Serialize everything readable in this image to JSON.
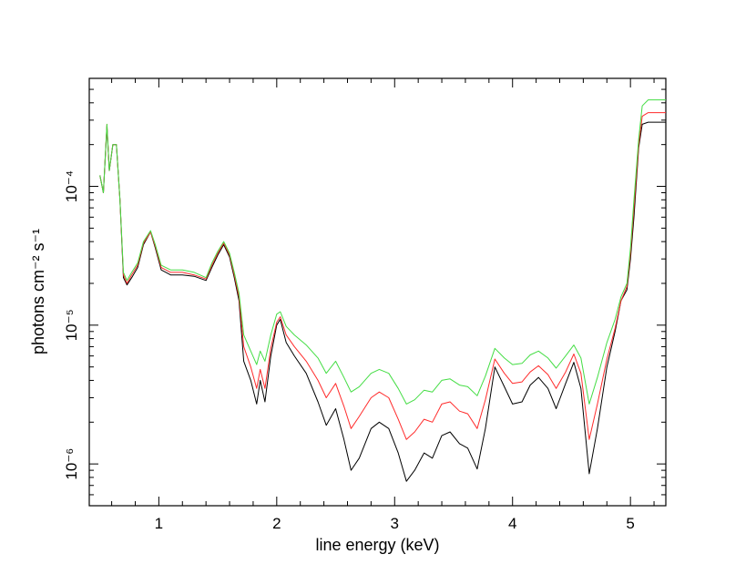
{
  "chart_data": {
    "type": "line",
    "xlabel": "line energy (keV)",
    "ylabel": "photons cm⁻² s⁻¹",
    "xlim": [
      0.41,
      5.3
    ],
    "ylim": [
      5e-07,
      0.0006
    ],
    "y_scale": "log",
    "x_ticks": [
      1,
      2,
      3,
      4,
      5
    ],
    "y_ticks": [
      {
        "value": 1e-06,
        "label": "10⁻⁶"
      },
      {
        "value": 1e-05,
        "label": "10⁻⁵"
      },
      {
        "value": 0.0001,
        "label": "10⁻⁴"
      }
    ],
    "grid": false,
    "series": [
      {
        "color": "#000000",
        "x": [
          0.5,
          0.53,
          0.56,
          0.58,
          0.61,
          0.64,
          0.67,
          0.7,
          0.73,
          0.77,
          0.82,
          0.87,
          0.93,
          0.97,
          1.02,
          1.1,
          1.2,
          1.3,
          1.4,
          1.45,
          1.5,
          1.55,
          1.6,
          1.64,
          1.68,
          1.72,
          1.78,
          1.83,
          1.86,
          1.9,
          1.95,
          2.0,
          2.03,
          2.08,
          2.15,
          2.25,
          2.35,
          2.42,
          2.5,
          2.57,
          2.63,
          2.7,
          2.8,
          2.87,
          2.95,
          3.03,
          3.1,
          3.17,
          3.25,
          3.32,
          3.4,
          3.47,
          3.55,
          3.62,
          3.7,
          3.77,
          3.85,
          3.93,
          4.0,
          4.08,
          4.15,
          4.22,
          4.3,
          4.37,
          4.45,
          4.52,
          4.58,
          4.65,
          4.72,
          4.8,
          4.87,
          4.92,
          4.97,
          5.0,
          5.03,
          5.07,
          5.1,
          5.15,
          5.3
        ],
        "y": [
          0.00012,
          9e-05,
          0.00027,
          0.00013,
          0.0002,
          0.0002,
          8e-05,
          2.2e-05,
          1.95e-05,
          2.2e-05,
          2.6e-05,
          3.8e-05,
          4.7e-05,
          3.6e-05,
          2.5e-05,
          2.3e-05,
          2.3e-05,
          2.25e-05,
          2.1e-05,
          2.6e-05,
          3.2e-05,
          3.8e-05,
          3.1e-05,
          2.2e-05,
          1.5e-05,
          5.5e-06,
          4e-06,
          2.7e-06,
          4e-06,
          2.8e-06,
          6e-06,
          1e-05,
          1.1e-05,
          7.5e-06,
          6e-06,
          4.5e-06,
          2.8e-06,
          1.9e-06,
          2.5e-06,
          1.5e-06,
          9e-07,
          1.1e-06,
          1.8e-06,
          2e-06,
          1.8e-06,
          1.2e-06,
          7.5e-07,
          9e-07,
          1.2e-06,
          1.1e-06,
          1.6e-06,
          1.7e-06,
          1.4e-06,
          1.3e-06,
          9.2e-07,
          1.8e-06,
          5e-06,
          3.6e-06,
          2.7e-06,
          2.8e-06,
          3.7e-06,
          4.2e-06,
          3.5e-06,
          2.5e-06,
          3.8e-06,
          5.4e-06,
          3.5e-06,
          8.5e-07,
          1.8e-06,
          5e-06,
          9e-06,
          1.5e-05,
          1.8e-05,
          3e-05,
          6e-05,
          0.00019,
          0.00028,
          0.00029,
          0.00029
        ]
      },
      {
        "color": "#ff2b2b",
        "x": [
          0.5,
          0.53,
          0.56,
          0.58,
          0.61,
          0.64,
          0.67,
          0.7,
          0.73,
          0.77,
          0.82,
          0.87,
          0.93,
          0.97,
          1.02,
          1.1,
          1.2,
          1.3,
          1.4,
          1.45,
          1.5,
          1.55,
          1.6,
          1.64,
          1.68,
          1.72,
          1.78,
          1.83,
          1.86,
          1.9,
          1.95,
          2.0,
          2.03,
          2.08,
          2.15,
          2.25,
          2.35,
          2.42,
          2.5,
          2.57,
          2.63,
          2.7,
          2.8,
          2.87,
          2.95,
          3.03,
          3.1,
          3.17,
          3.25,
          3.32,
          3.4,
          3.47,
          3.55,
          3.62,
          3.7,
          3.77,
          3.85,
          3.93,
          4.0,
          4.08,
          4.15,
          4.22,
          4.3,
          4.37,
          4.45,
          4.52,
          4.58,
          4.65,
          4.72,
          4.8,
          4.87,
          4.92,
          4.97,
          5.0,
          5.03,
          5.07,
          5.1,
          5.15,
          5.3
        ],
        "y": [
          0.00012,
          9e-05,
          0.00028,
          0.00013,
          0.0002,
          0.0002,
          8e-05,
          2.3e-05,
          2e-05,
          2.3e-05,
          2.7e-05,
          3.9e-05,
          4.7e-05,
          3.7e-05,
          2.6e-05,
          2.4e-05,
          2.4e-05,
          2.3e-05,
          2.15e-05,
          2.7e-05,
          3.3e-05,
          3.9e-05,
          3.2e-05,
          2.3e-05,
          1.6e-05,
          7e-06,
          5e-06,
          3.5e-06,
          4.8e-06,
          3.5e-06,
          6.8e-06,
          1.05e-05,
          1.15e-05,
          8.5e-06,
          7e-06,
          5.5e-06,
          4e-06,
          3e-06,
          3.8e-06,
          2.6e-06,
          1.8e-06,
          2.2e-06,
          3e-06,
          3.3e-06,
          3e-06,
          2.1e-06,
          1.5e-06,
          1.7e-06,
          2.1e-06,
          2e-06,
          2.7e-06,
          2.8e-06,
          2.4e-06,
          2.3e-06,
          1.8e-06,
          2.9e-06,
          5.7e-06,
          4.5e-06,
          3.8e-06,
          3.9e-06,
          4.6e-06,
          5.1e-06,
          4.4e-06,
          3.5e-06,
          4.6e-06,
          6.2e-06,
          4.5e-06,
          1.5e-06,
          2.7e-06,
          5.7e-06,
          9.5e-06,
          1.5e-05,
          1.9e-05,
          3.3e-05,
          7e-05,
          0.0002,
          0.00032,
          0.00034,
          0.00034
        ]
      },
      {
        "color": "#44dd44",
        "x": [
          0.5,
          0.53,
          0.56,
          0.58,
          0.61,
          0.64,
          0.67,
          0.7,
          0.73,
          0.77,
          0.82,
          0.87,
          0.93,
          0.97,
          1.02,
          1.1,
          1.2,
          1.3,
          1.4,
          1.45,
          1.5,
          1.55,
          1.6,
          1.64,
          1.68,
          1.72,
          1.78,
          1.83,
          1.86,
          1.9,
          1.95,
          2.0,
          2.03,
          2.08,
          2.15,
          2.25,
          2.35,
          2.42,
          2.5,
          2.57,
          2.63,
          2.7,
          2.8,
          2.87,
          2.95,
          3.03,
          3.1,
          3.17,
          3.25,
          3.32,
          3.4,
          3.47,
          3.55,
          3.62,
          3.7,
          3.77,
          3.85,
          3.93,
          4.0,
          4.08,
          4.15,
          4.22,
          4.3,
          4.37,
          4.45,
          4.52,
          4.58,
          4.65,
          4.72,
          4.8,
          4.87,
          4.92,
          4.97,
          5.0,
          5.03,
          5.07,
          5.1,
          5.15,
          5.3
        ],
        "y": [
          0.00012,
          9e-05,
          0.00028,
          0.00013,
          0.0002,
          0.0002,
          8e-05,
          2.4e-05,
          2.1e-05,
          2.4e-05,
          2.8e-05,
          4e-05,
          4.8e-05,
          3.8e-05,
          2.7e-05,
          2.5e-05,
          2.5e-05,
          2.4e-05,
          2.2e-05,
          2.8e-05,
          3.4e-05,
          4e-05,
          3.3e-05,
          2.4e-05,
          1.7e-05,
          8.5e-06,
          6.5e-06,
          5.2e-06,
          6.5e-06,
          5.5e-06,
          8.5e-06,
          1.2e-05,
          1.25e-05,
          9.8e-06,
          8.5e-06,
          7.2e-06,
          5.8e-06,
          4.5e-06,
          5.5e-06,
          4.2e-06,
          3.3e-06,
          3.6e-06,
          4.5e-06,
          4.8e-06,
          4.5e-06,
          3.5e-06,
          2.7e-06,
          2.9e-06,
          3.4e-06,
          3.3e-06,
          4e-06,
          4.1e-06,
          3.7e-06,
          3.6e-06,
          3.1e-06,
          4.3e-06,
          6.8e-06,
          5.8e-06,
          5.2e-06,
          5.3e-06,
          6.1e-06,
          6.5e-06,
          5.8e-06,
          4.9e-06,
          6e-06,
          7.2e-06,
          5.8e-06,
          2.7e-06,
          4.2e-06,
          7.5e-06,
          1.1e-05,
          1.6e-05,
          2e-05,
          3.6e-05,
          8e-05,
          0.00022,
          0.00038,
          0.00042,
          0.00042
        ]
      }
    ]
  }
}
